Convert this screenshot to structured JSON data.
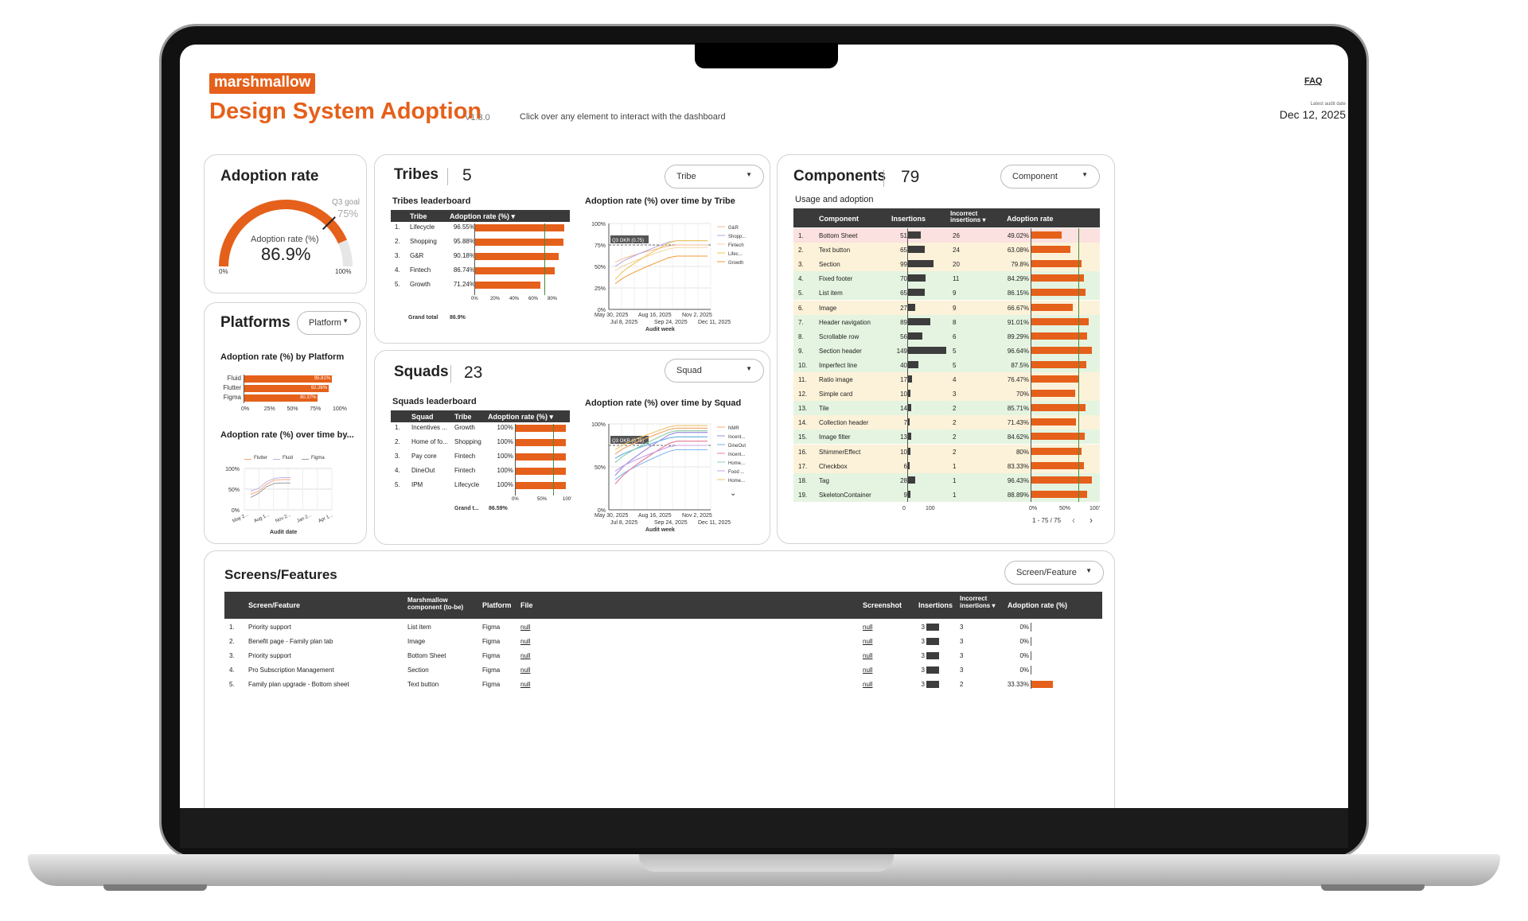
{
  "header": {
    "logo": "marshmallow",
    "title": "Design System Adoption",
    "version": "V1.3.0",
    "hint": "Click over any element to interact with the dashboard",
    "faq": "FAQ",
    "audit_label": "Latest audit date",
    "audit_date": "Dec 12, 2025"
  },
  "adoption": {
    "title": "Adoption rate",
    "goal_label": "Q3 goal",
    "goal_value": "75%",
    "gauge_label": "Adoption rate (%)",
    "value": "86.9%",
    "min": "0%",
    "max": "100%",
    "fraction": 0.869,
    "goal_fraction": 0.75
  },
  "platforms": {
    "title": "Platforms",
    "dropdown": "Platform",
    "chart_title": "Adoption rate (%) by Platform",
    "chart2_title": "Adoption rate (%) over time by...",
    "bars": [
      {
        "name": "Fluid",
        "label": "95.81%",
        "value": 95.81
      },
      {
        "name": "Flutter",
        "label": "92.26%",
        "value": 92.26
      },
      {
        "name": "Figma",
        "label": "80.37%",
        "value": 80.37
      }
    ],
    "xticks": [
      "0%",
      "25%",
      "50%",
      "75%",
      "100%"
    ],
    "legend": [
      "Flutter",
      "Fluid",
      "Figma"
    ],
    "yticks": [
      "100%",
      "50%",
      "0%"
    ],
    "xdates": [
      "May 2...",
      "Aug 1...",
      "Nov 2...",
      "Jan 2...",
      "Apr 1..."
    ],
    "xlabel": "Audit date"
  },
  "tribes": {
    "title": "Tribes",
    "count": "5",
    "dropdown": "Tribe",
    "leader_title": "Tribes leaderboard",
    "col_tribe": "Tribe",
    "col_rate": "Adoption rate (%) ▾",
    "rows": [
      {
        "n": "1.",
        "name": "Lifecycle",
        "label": "96.55%",
        "v": 96.55
      },
      {
        "n": "2.",
        "name": "Shopping",
        "label": "95.88%",
        "v": 95.88
      },
      {
        "n": "3.",
        "name": "G&R",
        "label": "90.18%",
        "v": 90.18
      },
      {
        "n": "4.",
        "name": "Fintech",
        "label": "86.74%",
        "v": 86.74
      },
      {
        "n": "5.",
        "name": "Growth",
        "label": "71.24%",
        "v": 71.24
      }
    ],
    "xticks": [
      "0%",
      "20%",
      "40%",
      "60%",
      "80%"
    ],
    "grand_label": "Grand total",
    "grand_value": "86.9%",
    "chart_title": "Adoption rate (%) over time by Tribe",
    "okr": "Q3 OKR (0.75)",
    "yticks": [
      "100%",
      "75%",
      "50%",
      "25%",
      "0%"
    ],
    "xdates_top": [
      "May 30, 2025",
      "Aug 16, 2025",
      "Nov 2, 2025"
    ],
    "xdates_bottom": [
      "Jul 8, 2025",
      "Sep 24, 2025",
      "Dec 11, 2025"
    ],
    "xlabel": "Audit week",
    "legend": [
      "G&R",
      "Shopp...",
      "Fintech",
      "Lifec...",
      "Growth"
    ]
  },
  "squads": {
    "title": "Squads",
    "count": "23",
    "dropdown": "Squad",
    "leader_title": "Squads leaderboard",
    "col_squad": "Squad",
    "col_tribe": "Tribe",
    "col_rate": "Adoption rate (%) ▾",
    "rows": [
      {
        "n": "1.",
        "name": "Incentives ...",
        "tribe": "Growth",
        "label": "100%"
      },
      {
        "n": "2.",
        "name": "Home of fo...",
        "tribe": "Shopping",
        "label": "100%"
      },
      {
        "n": "3.",
        "name": "Pay core",
        "tribe": "Fintech",
        "label": "100%"
      },
      {
        "n": "4.",
        "name": "DineOut",
        "tribe": "Fintech",
        "label": "100%"
      },
      {
        "n": "5.",
        "name": "IPM",
        "tribe": "Lifecycle",
        "label": "100%"
      }
    ],
    "xticks": [
      "0%",
      "50%",
      "100'"
    ],
    "grand_label": "Grand t...",
    "grand_value": "86.59%",
    "chart_title": "Adoption rate (%) over time by Squad",
    "okr": "Q3 OKR (0.75)",
    "yticks": [
      "100%",
      "50%",
      "0%"
    ],
    "xdates_top": [
      "May 30, 2025",
      "Aug 16, 2025",
      "Nov 2, 2025"
    ],
    "xdates_bottom": [
      "Jul 8, 2025",
      "Sep 24, 2025",
      "Dec 11, 2025"
    ],
    "xlabel": "Audit week",
    "legend": [
      "NMR",
      "Incent...",
      "DineOut",
      "Incent...",
      "Home...",
      "Food ...",
      "Home..."
    ]
  },
  "components": {
    "title": "Components",
    "count": "79",
    "dropdown": "Component",
    "sub": "Usage and adoption",
    "col_comp": "Component",
    "col_ins": "Insertions",
    "col_inc": "Incorrect insertions ▾",
    "col_rate": "Adoption rate",
    "rows": [
      {
        "n": "1.",
        "name": "Bottom Sheet",
        "ins": 51,
        "inc": 26,
        "rate": "49.02%",
        "v": 49.02
      },
      {
        "n": "2.",
        "name": "Text button",
        "ins": 65,
        "inc": 24,
        "rate": "63.08%",
        "v": 63.08
      },
      {
        "n": "3.",
        "name": "Section",
        "ins": 99,
        "inc": 20,
        "rate": "79.8%",
        "v": 79.8
      },
      {
        "n": "4.",
        "name": "Fixed footer",
        "ins": 70,
        "inc": 11,
        "rate": "84.29%",
        "v": 84.29
      },
      {
        "n": "5.",
        "name": "List item",
        "ins": 65,
        "inc": 9,
        "rate": "86.15%",
        "v": 86.15
      },
      {
        "n": "6.",
        "name": "Image",
        "ins": 27,
        "inc": 9,
        "rate": "66.67%",
        "v": 66.67
      },
      {
        "n": "7.",
        "name": "Header navigation",
        "ins": 89,
        "inc": 8,
        "rate": "91.01%",
        "v": 91.01
      },
      {
        "n": "8.",
        "name": "Scrollable row",
        "ins": 56,
        "inc": 6,
        "rate": "89.29%",
        "v": 89.29
      },
      {
        "n": "9.",
        "name": "Section header",
        "ins": 149,
        "inc": 5,
        "rate": "96.64%",
        "v": 96.64
      },
      {
        "n": "10.",
        "name": "Imperfect line",
        "ins": 40,
        "inc": 5,
        "rate": "87.5%",
        "v": 87.5
      },
      {
        "n": "11.",
        "name": "Ratio image",
        "ins": 17,
        "inc": 4,
        "rate": "76.47%",
        "v": 76.47
      },
      {
        "n": "12.",
        "name": "Simple card",
        "ins": 10,
        "inc": 3,
        "rate": "70%",
        "v": 70
      },
      {
        "n": "13.",
        "name": "Tile",
        "ins": 14,
        "inc": 2,
        "rate": "85.71%",
        "v": 85.71
      },
      {
        "n": "14.",
        "name": "Collection header",
        "ins": 7,
        "inc": 2,
        "rate": "71.43%",
        "v": 71.43
      },
      {
        "n": "15.",
        "name": "Image filter",
        "ins": 13,
        "inc": 2,
        "rate": "84.62%",
        "v": 84.62
      },
      {
        "n": "16.",
        "name": "ShimmerEffect",
        "ins": 10,
        "inc": 2,
        "rate": "80%",
        "v": 80
      },
      {
        "n": "17.",
        "name": "Checkbox",
        "ins": 6,
        "inc": 1,
        "rate": "83.33%",
        "v": 83.33
      },
      {
        "n": "18.",
        "name": "Tag",
        "ins": 28,
        "inc": 1,
        "rate": "96.43%",
        "v": 96.43
      },
      {
        "n": "19.",
        "name": "SkeletonContainer",
        "ins": 9,
        "inc": 1,
        "rate": "88.89%",
        "v": 88.89
      }
    ],
    "ins_ticks": [
      "0",
      "100"
    ],
    "rate_ticks": [
      "0%",
      "50%",
      "100'"
    ],
    "pager": "1 - 75 / 75"
  },
  "screens": {
    "title": "Screens/Features",
    "dropdown": "Screen/Feature",
    "cols": {
      "screen": "Screen/Feature",
      "comp": "Marshmallow component (to-be)",
      "platform": "Platform",
      "file": "File",
      "shot": "Screenshot",
      "ins": "Insertions",
      "inc": "Incorrect insertions ▾",
      "rate": "Adoption rate (%)"
    },
    "rows": [
      {
        "n": "1.",
        "screen": "Priority support",
        "comp": "List item",
        "platform": "Figma",
        "file": "null",
        "shot": "null",
        "ins": "3",
        "inc": "3",
        "rate": "0%",
        "v": 0
      },
      {
        "n": "2.",
        "screen": "Benefit page - Family plan tab",
        "comp": "Image",
        "platform": "Figma",
        "file": "null",
        "shot": "null",
        "ins": "3",
        "inc": "3",
        "rate": "0%",
        "v": 0
      },
      {
        "n": "3.",
        "screen": "Priority support",
        "comp": "Bottom Sheet",
        "platform": "Figma",
        "file": "null",
        "shot": "null",
        "ins": "3",
        "inc": "3",
        "rate": "0%",
        "v": 0
      },
      {
        "n": "4.",
        "screen": "Pro Subscription Management",
        "comp": "Section",
        "platform": "Figma",
        "file": "null",
        "shot": "null",
        "ins": "3",
        "inc": "3",
        "rate": "0%",
        "v": 0
      },
      {
        "n": "5.",
        "screen": "Family plan upgrade - Bottom sheet",
        "comp": "Text button",
        "platform": "Figma",
        "file": "null",
        "shot": "null",
        "ins": "3",
        "inc": "2",
        "rate": "33.33%",
        "v": 33.33
      }
    ]
  },
  "colors": {
    "accent": "#e5601a",
    "header": "#3a3a3a"
  }
}
